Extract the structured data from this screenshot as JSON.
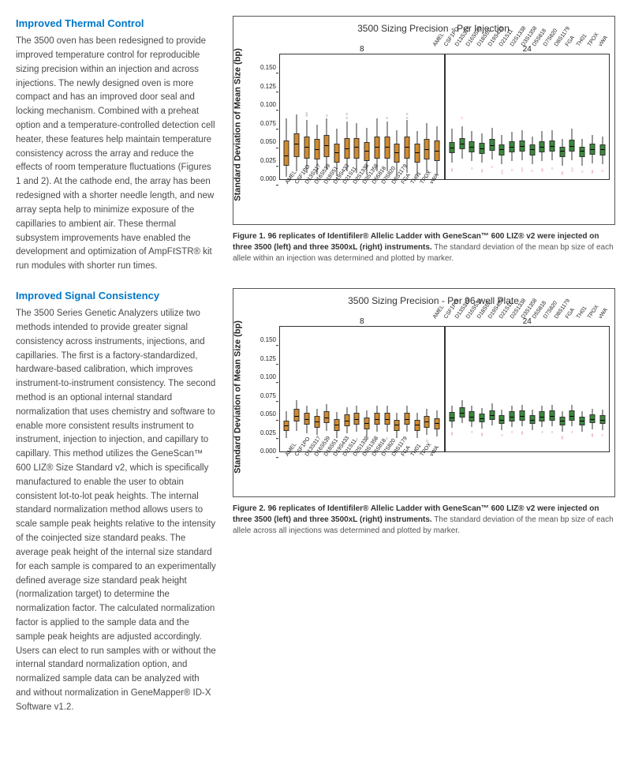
{
  "left": {
    "section1": {
      "heading": "Improved Thermal Control",
      "body": "The 3500 oven has been redesigned to provide improved temperature control for reproducible sizing precision within an injection and across injections. The newly designed oven is more compact and has an improved door seal and locking mechanism. Combined with a preheat option and a temperature-controlled detection cell heater, these features help maintain temperature consistency across the array and reduce the effects of room temperature fluctuations (Figures 1 and 2). At the cathode end, the array has been redesigned with a shorter needle length, and new array septa help to minimize exposure of the capillaries to ambient air. These thermal subsystem improvements have enabled the development and optimization of AmpFℓSTR® kit run modules with shorter run times."
    },
    "section2": {
      "heading": "Improved Signal Consistency",
      "body": "The 3500 Series Genetic Analyzers utilize two methods intended to provide greater signal consistency across instruments, injections, and capillaries. The first is a factory-standardized, hardware-based calibration, which improves instrument-to-instrument consistency. The second method is an optional internal standard normalization that uses chemistry and software to enable more consistent results instrument to instrument, injection to injection, and capillary to capillary. This method utilizes the GeneScan™ 600 LIZ® Size Standard v2, which is specifically manufactured to enable the user to obtain consistent lot-to-lot peak heights. The internal standard normalization method allows users to scale sample peak heights relative to the intensity of the coinjected size standard peaks. The average peak height of the internal size standard for each sample is compared to an experimentally defined average size standard peak height (normalization target) to determine the normalization factor. The calculated normalization factor is applied to the sample data and the sample peak heights are adjusted accordingly. Users can elect to run samples with or without the internal standard normalization option, and normalized sample data can be analyzed with and without normalization in GeneMapper® ID-X Software v1.2."
    }
  },
  "markers": [
    "AMEL",
    "CSF1PO",
    "D13S317",
    "D16S539",
    "D18S51",
    "D19S433",
    "D21S11",
    "D2S1338",
    "D3S1358",
    "D5S818",
    "D7S820",
    "D8S1179",
    "FGA",
    "TH01",
    "TPOX",
    "vWA"
  ],
  "charts": {
    "chart1": {
      "title": "3500 Sizing Precision - Per Injection",
      "ylabel": "Standard Deviation of Mean Size (bp)",
      "ylim": [
        0,
        0.17
      ],
      "yticks": [
        0.0,
        0.025,
        0.05,
        0.075,
        0.1,
        0.125,
        0.15
      ],
      "panels": [
        {
          "header": "8",
          "color": "#d18b2e",
          "outlier_color": "#333333",
          "boxes": [
            {
              "q1": 0.018,
              "med": 0.032,
              "q3": 0.052,
              "lo": 0.003,
              "hi": 0.082,
              "out": []
            },
            {
              "q1": 0.03,
              "med": 0.048,
              "q3": 0.062,
              "lo": 0.01,
              "hi": 0.088,
              "out": []
            },
            {
              "q1": 0.028,
              "med": 0.044,
              "q3": 0.058,
              "lo": 0.008,
              "hi": 0.08,
              "out": [
                0.088,
                0.091
              ]
            },
            {
              "q1": 0.026,
              "med": 0.04,
              "q3": 0.054,
              "lo": 0.006,
              "hi": 0.074,
              "out": [
                0.003
              ]
            },
            {
              "q1": 0.03,
              "med": 0.046,
              "q3": 0.06,
              "lo": 0.012,
              "hi": 0.082,
              "out": [
                0.088
              ]
            },
            {
              "q1": 0.022,
              "med": 0.036,
              "q3": 0.048,
              "lo": 0.004,
              "hi": 0.068,
              "out": [
                0.002,
                0.003
              ]
            },
            {
              "q1": 0.028,
              "med": 0.042,
              "q3": 0.056,
              "lo": 0.01,
              "hi": 0.078,
              "out": [
                0.085,
                0.09
              ]
            },
            {
              "q1": 0.028,
              "med": 0.044,
              "q3": 0.056,
              "lo": 0.008,
              "hi": 0.076,
              "out": [
                0.002
              ]
            },
            {
              "q1": 0.024,
              "med": 0.038,
              "q3": 0.05,
              "lo": 0.006,
              "hi": 0.07,
              "out": []
            },
            {
              "q1": 0.028,
              "med": 0.044,
              "q3": 0.058,
              "lo": 0.01,
              "hi": 0.082,
              "out": [
                0.005
              ]
            },
            {
              "q1": 0.028,
              "med": 0.044,
              "q3": 0.058,
              "lo": 0.01,
              "hi": 0.078,
              "out": [
                0.003,
                0.085
              ]
            },
            {
              "q1": 0.022,
              "med": 0.036,
              "q3": 0.048,
              "lo": 0.005,
              "hi": 0.066,
              "out": []
            },
            {
              "q1": 0.028,
              "med": 0.044,
              "q3": 0.058,
              "lo": 0.008,
              "hi": 0.08,
              "out": [
                0.085,
                0.09
              ]
            },
            {
              "q1": 0.022,
              "med": 0.036,
              "q3": 0.048,
              "lo": 0.004,
              "hi": 0.065,
              "out": []
            },
            {
              "q1": 0.026,
              "med": 0.04,
              "q3": 0.054,
              "lo": 0.008,
              "hi": 0.076,
              "out": [
                0.003
              ]
            },
            {
              "q1": 0.024,
              "med": 0.038,
              "q3": 0.052,
              "lo": 0.006,
              "hi": 0.072,
              "out": []
            }
          ]
        },
        {
          "header": "24",
          "color": "#3a8a3a",
          "outlier_color": "#d43d6e",
          "boxes": [
            {
              "q1": 0.035,
              "med": 0.043,
              "q3": 0.05,
              "lo": 0.022,
              "hi": 0.068,
              "out": [
                0.015,
                0.012
              ]
            },
            {
              "q1": 0.04,
              "med": 0.048,
              "q3": 0.055,
              "lo": 0.028,
              "hi": 0.072,
              "out": [
                0.085
              ]
            },
            {
              "q1": 0.036,
              "med": 0.044,
              "q3": 0.051,
              "lo": 0.024,
              "hi": 0.065,
              "out": [
                0.016
              ]
            },
            {
              "q1": 0.034,
              "med": 0.042,
              "q3": 0.049,
              "lo": 0.022,
              "hi": 0.062,
              "out": [
                0.014,
                0.011
              ]
            },
            {
              "q1": 0.038,
              "med": 0.046,
              "q3": 0.054,
              "lo": 0.026,
              "hi": 0.07,
              "out": [
                0.018
              ]
            },
            {
              "q1": 0.032,
              "med": 0.04,
              "q3": 0.047,
              "lo": 0.02,
              "hi": 0.06,
              "out": [
                0.012,
                0.009
              ]
            },
            {
              "q1": 0.036,
              "med": 0.044,
              "q3": 0.051,
              "lo": 0.024,
              "hi": 0.064,
              "out": [
                0.014
              ]
            },
            {
              "q1": 0.037,
              "med": 0.045,
              "q3": 0.052,
              "lo": 0.025,
              "hi": 0.066,
              "out": [
                0.016,
                0.013
              ]
            },
            {
              "q1": 0.032,
              "med": 0.04,
              "q3": 0.047,
              "lo": 0.02,
              "hi": 0.058,
              "out": [
                0.012
              ]
            },
            {
              "q1": 0.036,
              "med": 0.044,
              "q3": 0.051,
              "lo": 0.024,
              "hi": 0.065,
              "out": [
                0.015,
                0.012
              ]
            },
            {
              "q1": 0.037,
              "med": 0.045,
              "q3": 0.052,
              "lo": 0.025,
              "hi": 0.066,
              "out": [
                0.016
              ]
            },
            {
              "q1": 0.03,
              "med": 0.038,
              "q3": 0.044,
              "lo": 0.018,
              "hi": 0.054,
              "out": [
                0.01,
                0.008
              ]
            },
            {
              "q1": 0.037,
              "med": 0.045,
              "q3": 0.053,
              "lo": 0.025,
              "hi": 0.068,
              "out": [
                0.016,
                0.013
              ]
            },
            {
              "q1": 0.03,
              "med": 0.038,
              "q3": 0.044,
              "lo": 0.018,
              "hi": 0.054,
              "out": [
                0.011
              ]
            },
            {
              "q1": 0.033,
              "med": 0.041,
              "q3": 0.048,
              "lo": 0.021,
              "hi": 0.06,
              "out": [
                0.013,
                0.01
              ]
            },
            {
              "q1": 0.032,
              "med": 0.04,
              "q3": 0.047,
              "lo": 0.02,
              "hi": 0.058,
              "out": [
                0.012
              ]
            }
          ]
        }
      ],
      "caption_bold": "Figure 1. 96 replicates of Identifiler® Allelic Ladder with GeneScan™ 600 LIZ® v2 were injected on three 3500 (left) and three 3500xL (right) instruments.",
      "caption_rest": " The standard deviation of the mean bp size of each allele within an injection was determined and plotted by marker."
    },
    "chart2": {
      "title": "3500 Sizing Precision - Per 96-well Plate",
      "ylabel": "Standard Deviation of Mean Size (bp)",
      "ylim": [
        0,
        0.17
      ],
      "yticks": [
        0.0,
        0.025,
        0.05,
        0.075,
        0.1,
        0.125,
        0.15
      ],
      "panels": [
        {
          "header": "8",
          "color": "#d18b2e",
          "outlier_color": "#333333",
          "boxes": [
            {
              "q1": 0.028,
              "med": 0.035,
              "q3": 0.042,
              "lo": 0.018,
              "hi": 0.054,
              "out": []
            },
            {
              "q1": 0.04,
              "med": 0.048,
              "q3": 0.058,
              "lo": 0.028,
              "hi": 0.07,
              "out": []
            },
            {
              "q1": 0.036,
              "med": 0.044,
              "q3": 0.052,
              "lo": 0.024,
              "hi": 0.062,
              "out": []
            },
            {
              "q1": 0.032,
              "med": 0.04,
              "q3": 0.048,
              "lo": 0.022,
              "hi": 0.058,
              "out": []
            },
            {
              "q1": 0.038,
              "med": 0.046,
              "q3": 0.054,
              "lo": 0.028,
              "hi": 0.064,
              "out": []
            },
            {
              "q1": 0.028,
              "med": 0.036,
              "q3": 0.044,
              "lo": 0.018,
              "hi": 0.053,
              "out": []
            },
            {
              "q1": 0.034,
              "med": 0.042,
              "q3": 0.05,
              "lo": 0.024,
              "hi": 0.06,
              "out": []
            },
            {
              "q1": 0.036,
              "med": 0.044,
              "q3": 0.052,
              "lo": 0.026,
              "hi": 0.062,
              "out": [
                0.018
              ]
            },
            {
              "q1": 0.03,
              "med": 0.038,
              "q3": 0.046,
              "lo": 0.02,
              "hi": 0.055,
              "out": []
            },
            {
              "q1": 0.036,
              "med": 0.044,
              "q3": 0.052,
              "lo": 0.026,
              "hi": 0.062,
              "out": []
            },
            {
              "q1": 0.036,
              "med": 0.044,
              "q3": 0.052,
              "lo": 0.026,
              "hi": 0.062,
              "out": [
                0.019
              ]
            },
            {
              "q1": 0.028,
              "med": 0.036,
              "q3": 0.043,
              "lo": 0.018,
              "hi": 0.052,
              "out": []
            },
            {
              "q1": 0.036,
              "med": 0.044,
              "q3": 0.052,
              "lo": 0.026,
              "hi": 0.062,
              "out": []
            },
            {
              "q1": 0.028,
              "med": 0.036,
              "q3": 0.043,
              "lo": 0.018,
              "hi": 0.052,
              "out": []
            },
            {
              "q1": 0.032,
              "med": 0.04,
              "q3": 0.048,
              "lo": 0.022,
              "hi": 0.058,
              "out": [
                0.016
              ]
            },
            {
              "q1": 0.03,
              "med": 0.038,
              "q3": 0.045,
              "lo": 0.02,
              "hi": 0.055,
              "out": []
            }
          ]
        },
        {
          "header": "24",
          "color": "#3a8a3a",
          "outlier_color": "#d43d6e",
          "boxes": [
            {
              "q1": 0.04,
              "med": 0.046,
              "q3": 0.053,
              "lo": 0.032,
              "hi": 0.062,
              "out": [
                0.026,
                0.024
              ]
            },
            {
              "q1": 0.046,
              "med": 0.052,
              "q3": 0.06,
              "lo": 0.038,
              "hi": 0.07,
              "out": []
            },
            {
              "q1": 0.041,
              "med": 0.047,
              "q3": 0.054,
              "lo": 0.033,
              "hi": 0.062,
              "out": [
                0.027
              ]
            },
            {
              "q1": 0.039,
              "med": 0.045,
              "q3": 0.051,
              "lo": 0.031,
              "hi": 0.059,
              "out": [
                0.025,
                0.023
              ]
            },
            {
              "q1": 0.043,
              "med": 0.049,
              "q3": 0.056,
              "lo": 0.035,
              "hi": 0.065,
              "out": []
            },
            {
              "q1": 0.037,
              "med": 0.043,
              "q3": 0.049,
              "lo": 0.029,
              "hi": 0.057,
              "out": [
                0.023
              ]
            },
            {
              "q1": 0.041,
              "med": 0.047,
              "q3": 0.054,
              "lo": 0.033,
              "hi": 0.062,
              "out": [
                0.027
              ]
            },
            {
              "q1": 0.042,
              "med": 0.048,
              "q3": 0.055,
              "lo": 0.034,
              "hi": 0.063,
              "out": [
                0.028,
                0.025
              ]
            },
            {
              "q1": 0.037,
              "med": 0.043,
              "q3": 0.049,
              "lo": 0.029,
              "hi": 0.057,
              "out": []
            },
            {
              "q1": 0.041,
              "med": 0.047,
              "q3": 0.054,
              "lo": 0.033,
              "hi": 0.062,
              "out": [
                0.027
              ]
            },
            {
              "q1": 0.042,
              "med": 0.048,
              "q3": 0.055,
              "lo": 0.034,
              "hi": 0.063,
              "out": [
                0.028
              ]
            },
            {
              "q1": 0.035,
              "med": 0.041,
              "q3": 0.047,
              "lo": 0.027,
              "hi": 0.054,
              "out": [
                0.021,
                0.019
              ]
            },
            {
              "q1": 0.042,
              "med": 0.048,
              "q3": 0.055,
              "lo": 0.034,
              "hi": 0.063,
              "out": [
                0.028
              ]
            },
            {
              "q1": 0.035,
              "med": 0.041,
              "q3": 0.047,
              "lo": 0.027,
              "hi": 0.054,
              "out": []
            },
            {
              "q1": 0.038,
              "med": 0.044,
              "q3": 0.05,
              "lo": 0.03,
              "hi": 0.058,
              "out": [
                0.024,
                0.022
              ]
            },
            {
              "q1": 0.037,
              "med": 0.043,
              "q3": 0.049,
              "lo": 0.029,
              "hi": 0.057,
              "out": [
                0.023
              ]
            }
          ]
        }
      ],
      "caption_bold": "Figure 2. 96 replicates of Identifiler® Allelic Ladder with GeneScan™ 600 LIZ® v2 were injected on three 3500 (left) and three 3500xL (right) instruments.",
      "caption_rest": " The standard deviation of the mean bp size of each allele across all injections was determined and plotted by marker."
    }
  }
}
